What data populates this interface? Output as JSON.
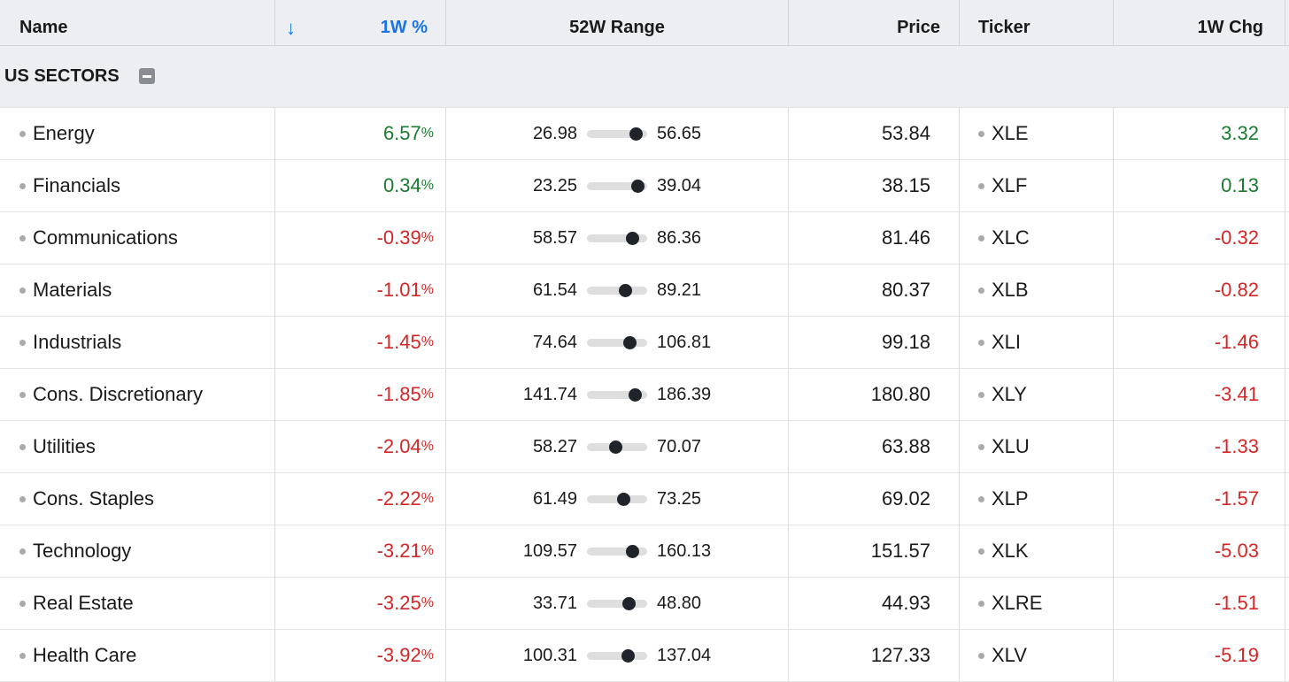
{
  "header": {
    "name": "Name",
    "sort_icon": "arrow-down-icon",
    "sort_arrow": "↓",
    "one_week_pct": "1W %",
    "range": "52W Range",
    "price": "Price",
    "ticker": "Ticker",
    "one_week_chg": "1W Chg"
  },
  "group": {
    "title": "US SECTORS",
    "collapse_icon": "minus-square-icon"
  },
  "colors": {
    "positive": "#1a7a2e",
    "negative": "#d32626",
    "sort_accent": "#1a73e8"
  },
  "rows": [
    {
      "name": "Energy",
      "pct": "6.57",
      "pct_sign": "%",
      "low": "26.98",
      "high": "56.65",
      "price": "53.84",
      "ticker": "XLE",
      "chg": "3.32",
      "dir": "pos"
    },
    {
      "name": "Financials",
      "pct": "0.34",
      "pct_sign": "%",
      "low": "23.25",
      "high": "39.04",
      "price": "38.15",
      "ticker": "XLF",
      "chg": "0.13",
      "dir": "pos"
    },
    {
      "name": "Communications",
      "pct": "-0.39",
      "pct_sign": "%",
      "low": "58.57",
      "high": "86.36",
      "price": "81.46",
      "ticker": "XLC",
      "chg": "-0.32",
      "dir": "neg"
    },
    {
      "name": "Materials",
      "pct": "-1.01",
      "pct_sign": "%",
      "low": "61.54",
      "high": "89.21",
      "price": "80.37",
      "ticker": "XLB",
      "chg": "-0.82",
      "dir": "neg"
    },
    {
      "name": "Industrials",
      "pct": "-1.45",
      "pct_sign": "%",
      "low": "74.64",
      "high": "106.81",
      "price": "99.18",
      "ticker": "XLI",
      "chg": "-1.46",
      "dir": "neg"
    },
    {
      "name": "Cons. Discretionary",
      "pct": "-1.85",
      "pct_sign": "%",
      "low": "141.74",
      "high": "186.39",
      "price": "180.80",
      "ticker": "XLY",
      "chg": "-3.41",
      "dir": "neg"
    },
    {
      "name": "Utilities",
      "pct": "-2.04",
      "pct_sign": "%",
      "low": "58.27",
      "high": "70.07",
      "price": "63.88",
      "ticker": "XLU",
      "chg": "-1.33",
      "dir": "neg"
    },
    {
      "name": "Cons. Staples",
      "pct": "-2.22",
      "pct_sign": "%",
      "low": "61.49",
      "high": "73.25",
      "price": "69.02",
      "ticker": "XLP",
      "chg": "-1.57",
      "dir": "neg"
    },
    {
      "name": "Technology",
      "pct": "-3.21",
      "pct_sign": "%",
      "low": "109.57",
      "high": "160.13",
      "price": "151.57",
      "ticker": "XLK",
      "chg": "-5.03",
      "dir": "neg"
    },
    {
      "name": "Real Estate",
      "pct": "-3.25",
      "pct_sign": "%",
      "low": "33.71",
      "high": "48.80",
      "price": "44.93",
      "ticker": "XLRE",
      "chg": "-1.51",
      "dir": "neg"
    },
    {
      "name": "Health Care",
      "pct": "-3.92",
      "pct_sign": "%",
      "low": "100.31",
      "high": "137.04",
      "price": "127.33",
      "ticker": "XLV",
      "chg": "-5.19",
      "dir": "neg"
    }
  ]
}
